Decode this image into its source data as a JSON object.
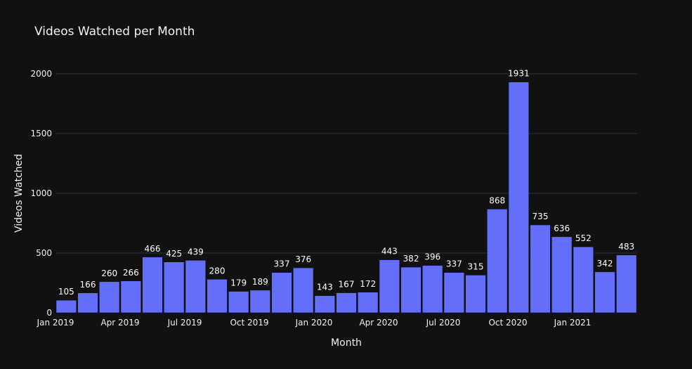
{
  "colors": {
    "background": "#111111",
    "bar": "#636efa",
    "grid": "#283442",
    "text": "#f2f2f2"
  },
  "chart_data": {
    "type": "bar",
    "title": "Videos Watched per Month",
    "xlabel": "Month",
    "ylabel": "Videos Watched",
    "ylim": [
      0,
      2000
    ],
    "grid": true,
    "legend": "none",
    "categories": [
      "2019-01",
      "2019-02",
      "2019-03",
      "2019-04",
      "2019-05",
      "2019-06",
      "2019-07",
      "2019-08",
      "2019-09",
      "2019-10",
      "2019-11",
      "2019-12",
      "2020-01",
      "2020-02",
      "2020-03",
      "2020-04",
      "2020-05",
      "2020-06",
      "2020-07",
      "2020-08",
      "2020-09",
      "2020-10",
      "2020-11",
      "2020-12",
      "2021-01",
      "2021-02",
      "2021-03"
    ],
    "values": [
      105,
      166,
      260,
      266,
      466,
      425,
      439,
      280,
      179,
      189,
      337,
      376,
      143,
      167,
      172,
      443,
      382,
      396,
      337,
      315,
      868,
      1931,
      735,
      636,
      552,
      342,
      483
    ],
    "x_tick_labels": [
      {
        "at": "2019-01",
        "label": "Jan 2019"
      },
      {
        "at": "2019-04",
        "label": "Apr 2019"
      },
      {
        "at": "2019-07",
        "label": "Jul 2019"
      },
      {
        "at": "2019-10",
        "label": "Oct 2019"
      },
      {
        "at": "2020-01",
        "label": "Jan 2020"
      },
      {
        "at": "2020-04",
        "label": "Apr 2020"
      },
      {
        "at": "2020-07",
        "label": "Jul 2020"
      },
      {
        "at": "2020-10",
        "label": "Oct 2020"
      },
      {
        "at": "2021-01",
        "label": "Jan 2021"
      }
    ],
    "y_tick_labels": [
      "0",
      "500",
      "1000",
      "1500",
      "2000"
    ],
    "y_ticks": [
      0,
      500,
      1000,
      1500,
      2000
    ]
  }
}
